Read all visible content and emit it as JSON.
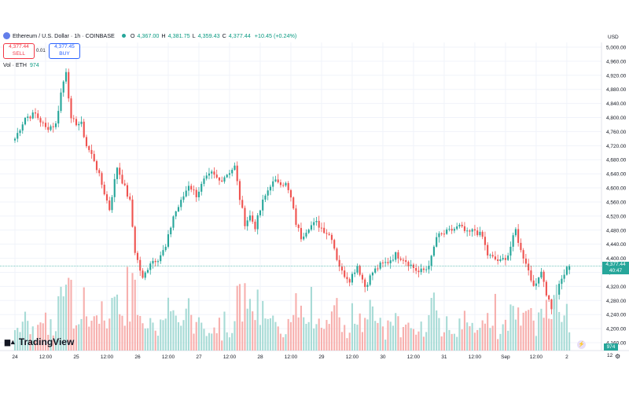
{
  "header": {
    "symbol": "Ethereum / U.S. Dollar · 1h · COINBASE",
    "o_label": "O",
    "o": "4,367.00",
    "h_label": "H",
    "h": "4,381.75",
    "l_label": "L",
    "l": "4,359.43",
    "c_label": "C",
    "c": "4,377.44",
    "change": "+10.45 (+0.24%)"
  },
  "trade": {
    "sell_price": "4,377.44",
    "sell_label": "SELL",
    "spread": "0.01",
    "buy_price": "4,377.45",
    "buy_label": "BUY"
  },
  "volume_legend": {
    "label": "Vol · ETH",
    "value": "974"
  },
  "currency": "USD",
  "current_price_tag": {
    "price": "4,377.44",
    "countdown": "40:47"
  },
  "volume_tag": "974",
  "brand": "TradingView",
  "time_axis_extra": "12",
  "colors": {
    "up": "#26a69a",
    "down": "#ef5350",
    "up_vol": "#a8dbd6",
    "down_vol": "#f7b0ae",
    "grid": "#f0f3fa",
    "axis_text": "#131722"
  },
  "chart_data": {
    "type": "candlestick",
    "interval": "1h",
    "y_axis": {
      "range": [
        4160,
        5000
      ],
      "ticks": [
        5000,
        4960,
        4920,
        4880,
        4840,
        4800,
        4760,
        4720,
        4680,
        4640,
        4600,
        4560,
        4520,
        4480,
        4440,
        4400,
        4360,
        4320,
        4280,
        4240,
        4200,
        4160
      ],
      "tick_labels": [
        "5,000.00",
        "4,960.00",
        "4,920.00",
        "4,880.00",
        "4,840.00",
        "4,800.00",
        "4,760.00",
        "4,720.00",
        "4,680.00",
        "4,640.00",
        "4,600.00",
        "4,560.00",
        "4,520.00",
        "4,480.00",
        "4,440.00",
        "4,400.00",
        "4,360.00",
        "4,320.00",
        "4,280.00",
        "4,240.00",
        "4,200.00",
        "4,160.00"
      ]
    },
    "x_axis": {
      "range": [
        0,
        230
      ],
      "ticks": [
        {
          "x": 0,
          "label": "24"
        },
        {
          "x": 12,
          "label": "12:00"
        },
        {
          "x": 24,
          "label": "25"
        },
        {
          "x": 36,
          "label": "12:00"
        },
        {
          "x": 48,
          "label": "26"
        },
        {
          "x": 60,
          "label": "12:00"
        },
        {
          "x": 72,
          "label": "27"
        },
        {
          "x": 84,
          "label": "12:00"
        },
        {
          "x": 96,
          "label": "28"
        },
        {
          "x": 108,
          "label": "12:00"
        },
        {
          "x": 120,
          "label": "29"
        },
        {
          "x": 132,
          "label": "12:00"
        },
        {
          "x": 144,
          "label": "30"
        },
        {
          "x": 156,
          "label": "12:00"
        },
        {
          "x": 168,
          "label": "31"
        },
        {
          "x": 180,
          "label": "12:00"
        },
        {
          "x": 192,
          "label": "Sep"
        },
        {
          "x": 204,
          "label": "12:00"
        },
        {
          "x": 216,
          "label": "2"
        }
      ]
    },
    "anchors": [
      [
        0,
        4740
      ],
      [
        4,
        4800
      ],
      [
        8,
        4810
      ],
      [
        12,
        4770
      ],
      [
        16,
        4780
      ],
      [
        18,
        4870
      ],
      [
        20,
        4935
      ],
      [
        22,
        4790
      ],
      [
        26,
        4780
      ],
      [
        28,
        4720
      ],
      [
        31,
        4680
      ],
      [
        34,
        4610
      ],
      [
        37,
        4540
      ],
      [
        40,
        4660
      ],
      [
        43,
        4600
      ],
      [
        45,
        4560
      ],
      [
        47,
        4420
      ],
      [
        50,
        4340
      ],
      [
        53,
        4390
      ],
      [
        56,
        4400
      ],
      [
        59,
        4430
      ],
      [
        62,
        4520
      ],
      [
        65,
        4560
      ],
      [
        68,
        4610
      ],
      [
        71,
        4580
      ],
      [
        74,
        4620
      ],
      [
        77,
        4640
      ],
      [
        80,
        4620
      ],
      [
        83,
        4640
      ],
      [
        86,
        4660
      ],
      [
        88,
        4570
      ],
      [
        90,
        4500
      ],
      [
        92,
        4520
      ],
      [
        94,
        4490
      ],
      [
        97,
        4560
      ],
      [
        100,
        4610
      ],
      [
        103,
        4620
      ],
      [
        106,
        4610
      ],
      [
        108,
        4570
      ],
      [
        110,
        4500
      ],
      [
        112,
        4460
      ],
      [
        115,
        4490
      ],
      [
        118,
        4500
      ],
      [
        121,
        4480
      ],
      [
        124,
        4460
      ],
      [
        126,
        4400
      ],
      [
        128,
        4360
      ],
      [
        131,
        4340
      ],
      [
        134,
        4380
      ],
      [
        137,
        4320
      ],
      [
        140,
        4360
      ],
      [
        143,
        4380
      ],
      [
        146,
        4390
      ],
      [
        149,
        4410
      ],
      [
        152,
        4400
      ],
      [
        155,
        4380
      ],
      [
        158,
        4360
      ],
      [
        161,
        4370
      ],
      [
        163,
        4400
      ],
      [
        165,
        4460
      ],
      [
        168,
        4470
      ],
      [
        171,
        4480
      ],
      [
        174,
        4490
      ],
      [
        177,
        4470
      ],
      [
        180,
        4480
      ],
      [
        183,
        4460
      ],
      [
        185,
        4410
      ],
      [
        187,
        4400
      ],
      [
        190,
        4390
      ],
      [
        193,
        4410
      ],
      [
        196,
        4480
      ],
      [
        198,
        4420
      ],
      [
        200,
        4390
      ],
      [
        202,
        4340
      ],
      [
        204,
        4320
      ],
      [
        206,
        4370
      ],
      [
        208,
        4300
      ],
      [
        210,
        4260
      ],
      [
        212,
        4300
      ],
      [
        214,
        4340
      ],
      [
        216,
        4370
      ],
      [
        217,
        4377
      ]
    ],
    "volume_scale": [
      0,
      3600
    ],
    "last": {
      "open": 4367.0,
      "high": 4381.75,
      "low": 4359.43,
      "close": 4377.44,
      "volume": 974
    }
  }
}
